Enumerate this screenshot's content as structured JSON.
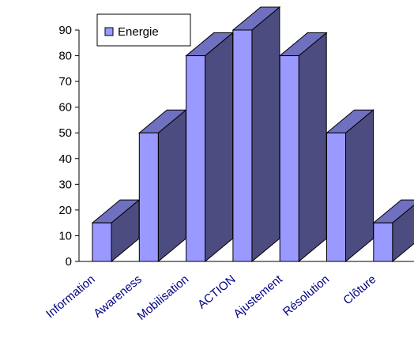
{
  "chart_data": {
    "type": "bar",
    "categories": [
      "Information",
      "Awareness",
      "Mobilisation",
      "ACTION",
      "Ajustement",
      "Résolution",
      "Clôture"
    ],
    "series": [
      {
        "name": "Energie",
        "values": [
          15,
          50,
          80,
          90,
          80,
          50,
          15
        ]
      }
    ],
    "ylim": [
      0,
      90
    ],
    "yticks": [
      "0",
      "10",
      "20",
      "30",
      "40",
      "50",
      "60",
      "70",
      "80",
      "90"
    ],
    "legend_position": "top-left",
    "three_d": true,
    "grid": false,
    "colors": {
      "bar_front": "#9999ff",
      "bar_side": "#4c4c80",
      "bar_top": "#7070c0",
      "category_label": "#000080",
      "axis": "#000000"
    }
  }
}
